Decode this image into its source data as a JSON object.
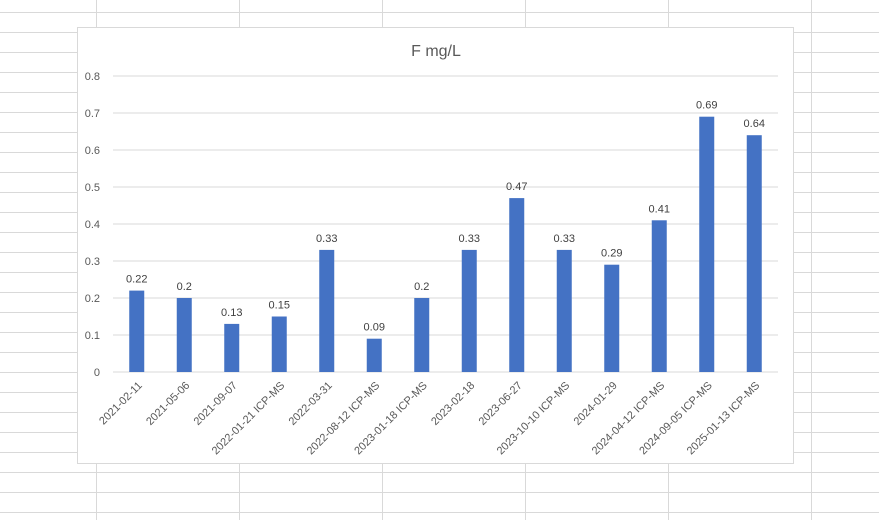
{
  "chart_data": {
    "type": "bar",
    "title": "F mg/L",
    "categories": [
      "2021-02-11",
      "2021-05-06",
      "2021-09-07",
      "2022-01-21 ICP-MS",
      "2022-03-31",
      "2022-08-12 ICP-MS",
      "2023-01-18 ICP-MS",
      "2023-02-18",
      "2023-06-27",
      "2023-10-10 ICP-MS",
      "2024-01-29",
      "2024-04-12 ICP-MS",
      "2024-09-05 ICP-MS",
      "2025-01-13 ICP-MS"
    ],
    "values": [
      0.22,
      0.2,
      0.13,
      0.15,
      0.33,
      0.09,
      0.2,
      0.33,
      0.47,
      0.33,
      0.29,
      0.41,
      0.69,
      0.64
    ],
    "data_labels": [
      "0.22",
      "0.2",
      "0.13",
      "0.15",
      "0.33",
      "0.09",
      "0.2",
      "0.33",
      "0.47",
      "0.33",
      "0.29",
      "0.41",
      "0.69",
      "0.64"
    ],
    "yticks": [
      "0",
      "0.1",
      "0.2",
      "0.3",
      "0.4",
      "0.5",
      "0.6",
      "0.7",
      "0.8"
    ],
    "ylim": [
      0,
      0.8
    ],
    "xlabel": "",
    "ylabel": "",
    "grid": true,
    "legend": "none",
    "bar_color": "#4472c4"
  }
}
